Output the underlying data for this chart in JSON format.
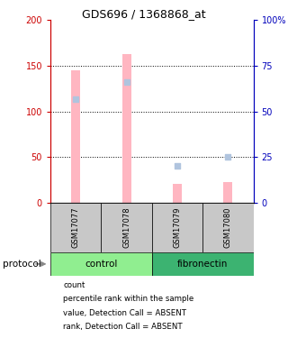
{
  "title": "GDS696 / 1368868_at",
  "samples": [
    "GSM17077",
    "GSM17078",
    "GSM17079",
    "GSM17080"
  ],
  "bar_values": [
    145,
    163,
    20,
    22
  ],
  "bar_color_absent": "#FFB6C1",
  "rank_values": [
    113,
    132,
    40,
    50
  ],
  "rank_color_absent": "#B0C4DE",
  "ylim_left": [
    0,
    200
  ],
  "ylim_right": [
    0,
    100
  ],
  "yticks_left": [
    0,
    50,
    100,
    150,
    200
  ],
  "yticks_right": [
    0,
    25,
    50,
    75,
    100
  ],
  "yticklabels_right": [
    "0",
    "25",
    "50",
    "75",
    "100%"
  ],
  "left_axis_color": "#CC0000",
  "right_axis_color": "#0000BB",
  "sample_bg_color": "#C8C8C8",
  "control_color": "#90EE90",
  "fibronectin_color": "#3CB371",
  "legend_items": [
    {
      "label": "count",
      "color": "#CC0000"
    },
    {
      "label": "percentile rank within the sample",
      "color": "#0000BB"
    },
    {
      "label": "value, Detection Call = ABSENT",
      "color": "#FFB6C1"
    },
    {
      "label": "rank, Detection Call = ABSENT",
      "color": "#B0C4DE"
    }
  ]
}
